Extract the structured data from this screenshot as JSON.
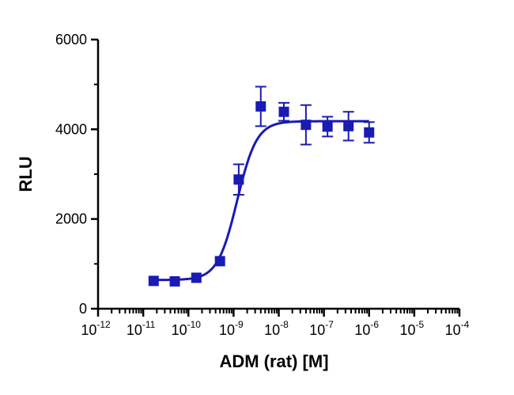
{
  "chart_data": {
    "type": "scatter",
    "xlabel": "ADM (rat) [M]",
    "ylabel": "RLU",
    "x_scale": "log",
    "xlim": [
      1e-12,
      0.0001
    ],
    "ylim": [
      0,
      6000
    ],
    "x_ticks": [
      1e-12,
      1e-11,
      1e-10,
      1e-09,
      1e-08,
      1e-07,
      1e-06,
      1e-05,
      0.0001
    ],
    "x_tick_labels": [
      {
        "base": "10",
        "exp": "-12"
      },
      {
        "base": "10",
        "exp": "-11"
      },
      {
        "base": "10",
        "exp": "-10"
      },
      {
        "base": "10",
        "exp": "-9"
      },
      {
        "base": "10",
        "exp": "-8"
      },
      {
        "base": "10",
        "exp": "-7"
      },
      {
        "base": "10",
        "exp": "-6"
      },
      {
        "base": "10",
        "exp": "-5"
      },
      {
        "base": "10",
        "exp": "-4"
      }
    ],
    "y_ticks": [
      0,
      2000,
      4000,
      6000
    ],
    "y_tick_labels": [
      "0",
      "2000",
      "4000",
      "6000"
    ],
    "grid": false,
    "color": "#1a1ab4",
    "marker": "square",
    "points": [
      {
        "x": 1.7e-11,
        "y": 620,
        "err": 0
      },
      {
        "x": 5e-11,
        "y": 610,
        "err": 0
      },
      {
        "x": 1.5e-10,
        "y": 690,
        "err": 0
      },
      {
        "x": 5e-10,
        "y": 1060,
        "err": 0
      },
      {
        "x": 1.3e-09,
        "y": 2880,
        "err": 340
      },
      {
        "x": 4e-09,
        "y": 4510,
        "err": 440
      },
      {
        "x": 1.3e-08,
        "y": 4390,
        "err": 200
      },
      {
        "x": 4e-08,
        "y": 4100,
        "err": 440
      },
      {
        "x": 1.2e-07,
        "y": 4060,
        "err": 220
      },
      {
        "x": 3.5e-07,
        "y": 4070,
        "err": 320
      },
      {
        "x": 1e-06,
        "y": 3930,
        "err": 230
      }
    ],
    "fit": {
      "model": "sigmoidal dose-response",
      "bottom": 640,
      "top": 4180,
      "ec50": 1.2e-09,
      "hill": 2.0,
      "x_range": [
        1.7e-11,
        1e-06
      ]
    }
  }
}
